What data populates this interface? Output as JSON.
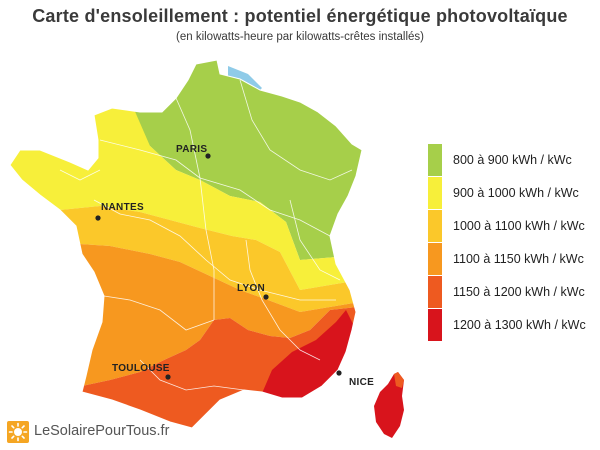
{
  "title": "Carte d'ensoleillement : potentiel énergétique photovoltaïque",
  "subtitle": "(en kilowatts-heure par kilowatts-crêtes installés)",
  "legend": [
    {
      "label": "800 à 900 kWh / kWc",
      "color": "#a6cf4a"
    },
    {
      "label": "900 à 1000 kWh / kWc",
      "color": "#f7ef3a"
    },
    {
      "label": "1000 à 1100 kWh / kWc",
      "color": "#fbc82a"
    },
    {
      "label": "1100 à 1150 kWh / kWc",
      "color": "#f7981f"
    },
    {
      "label": "1150 à 1200 kWh / kWc",
      "color": "#ee5a20"
    },
    {
      "label": "1200 à 1300 kWh / kWc",
      "color": "#d8141c"
    }
  ],
  "cities": {
    "paris": "PARIS",
    "nantes": "NANTES",
    "lyon": "LYON",
    "toulouse": "TOULOUSE",
    "nice": "NICE"
  },
  "brand": {
    "name": "LeSolairePourTous.fr",
    "icon": "sun-icon",
    "color": "#f5a623"
  },
  "colors": {
    "water": "#8fcbe8",
    "border": "#ffffff"
  }
}
